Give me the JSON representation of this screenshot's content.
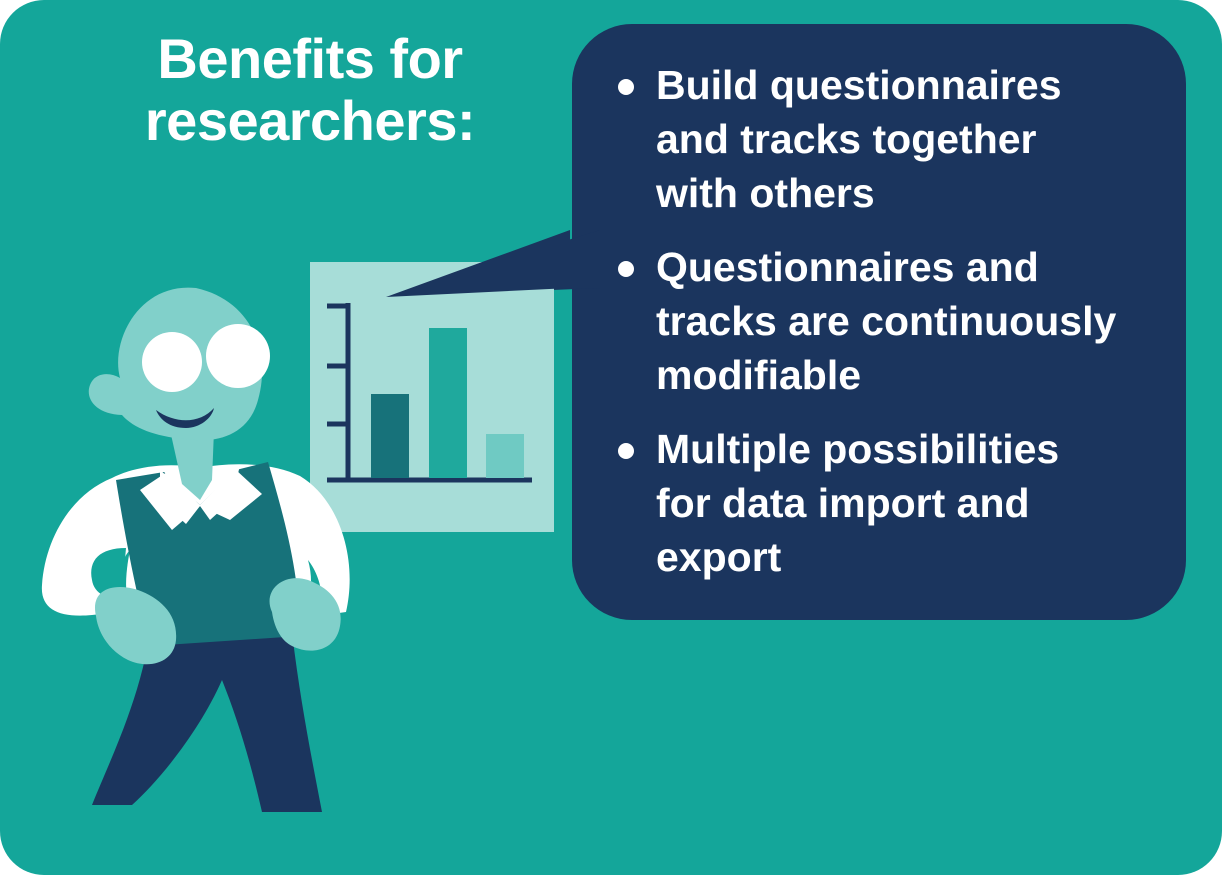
{
  "title": {
    "line1": "Benefits for",
    "line2": "researchers:"
  },
  "benefits": [
    {
      "lines": [
        "Build questionnaires",
        "and tracks together",
        "with others"
      ]
    },
    {
      "lines": [
        "Questionnaires and",
        "tracks are continuously",
        "modifiable"
      ]
    },
    {
      "lines": [
        "Multiple possibilities",
        "for data import and",
        "export"
      ]
    }
  ],
  "colors": {
    "background": "#14a69a",
    "bubble": "#1b355e",
    "board": "#a7ddd8",
    "skin": "#81d0ca",
    "vest": "#17727a",
    "trousers": "#1b355e",
    "shirt": "#ffffff"
  },
  "icons": {
    "presenter": "person-illustration",
    "board": "bar-chart-board",
    "bullet": "bullet-dot"
  }
}
